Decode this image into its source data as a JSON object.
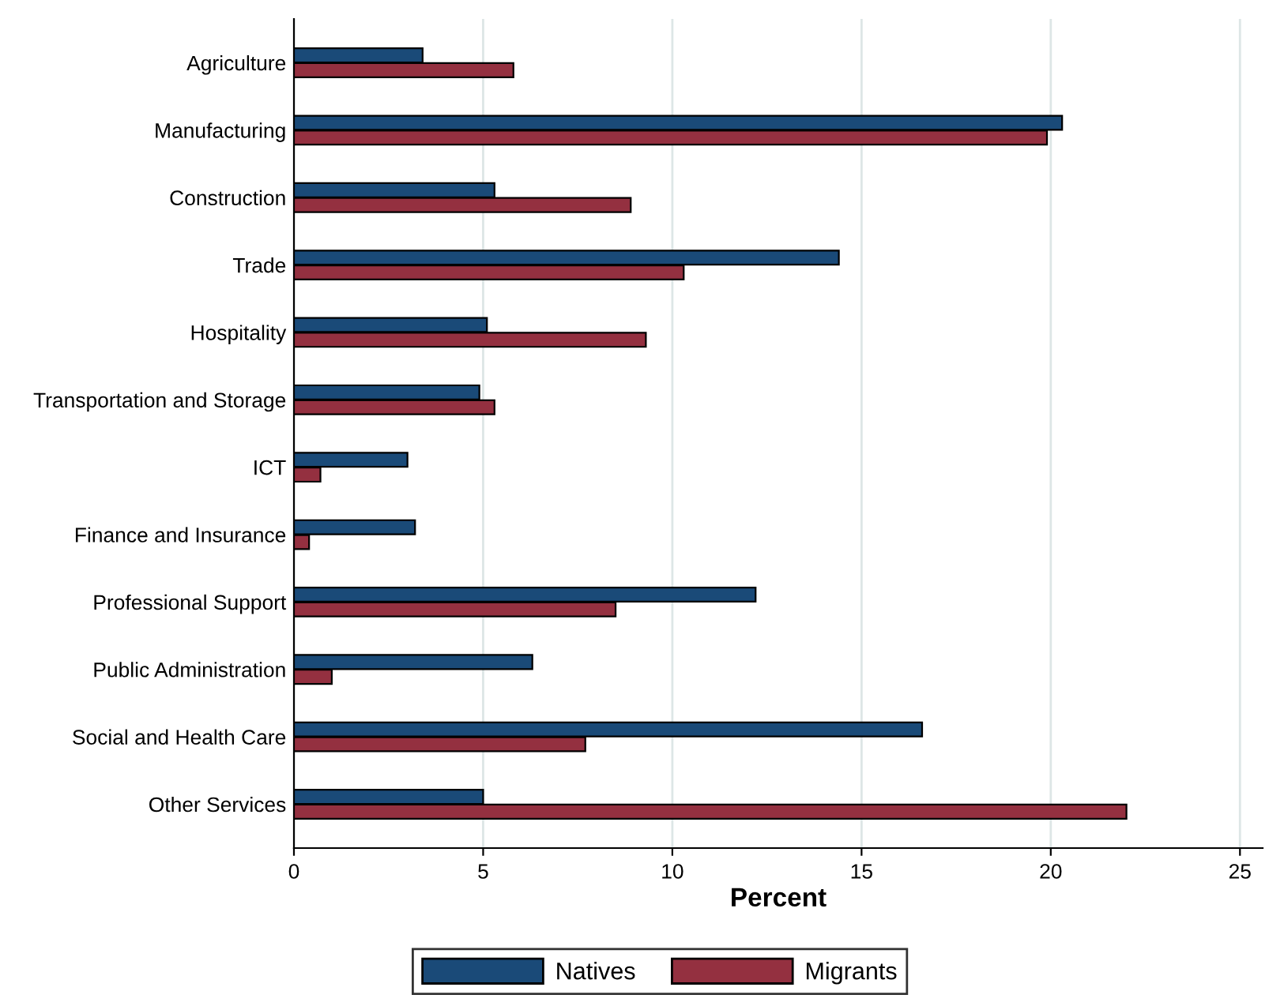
{
  "chart_data": {
    "type": "bar",
    "orientation": "horizontal",
    "xlabel": "Percent",
    "categories": [
      "Agriculture",
      "Manufacturing",
      "Construction",
      "Trade",
      "Hospitality",
      "Transportation and Storage",
      "ICT",
      "Finance and Insurance",
      "Professional Support",
      "Public Administration",
      "Social and Health Care",
      "Other Services"
    ],
    "series": [
      {
        "name": "Natives",
        "color": "#1a4a78",
        "values": [
          3.4,
          20.3,
          5.3,
          14.4,
          5.1,
          4.9,
          3.0,
          3.2,
          12.2,
          6.3,
          16.6,
          5.0
        ]
      },
      {
        "name": "Migrants",
        "color": "#943040",
        "values": [
          5.8,
          19.9,
          8.9,
          10.3,
          9.3,
          5.3,
          0.7,
          0.4,
          8.5,
          1.0,
          7.7,
          22.0
        ]
      }
    ],
    "xlim": [
      0,
      25.6
    ],
    "xticks": [
      0,
      5,
      10,
      15,
      20,
      25
    ],
    "grid": "x",
    "legend": "bottom"
  }
}
